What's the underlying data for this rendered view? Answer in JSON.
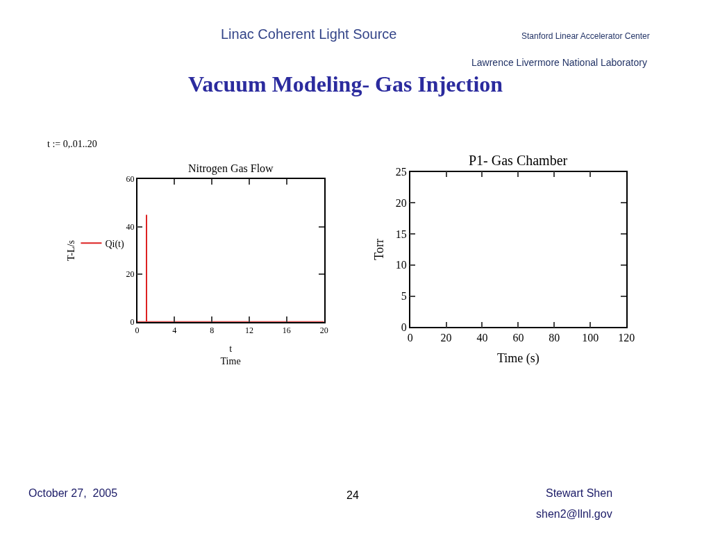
{
  "chart_data": [
    {
      "type": "line",
      "title": "Nitrogen Gas Flow",
      "xlabel": "t\nTime",
      "ylabel": "T-L/s",
      "annotations": [
        "Linac Coherent Light Source",
        "Stanford Linear Accelerator Center",
        "Lawrence Livermore National Laboratory",
        "Vacuum Modeling- Gas Injection",
        "t := 0,.01..20",
        "October 27,  2005",
        "24",
        "Stewart Shen",
        "shen2@llnl.gov"
      ],
      "series": [
        {
          "name": "Qi(t)",
          "color": "#dd2222",
          "x": [
            0,
            1,
            1,
            1,
            20
          ],
          "values": [
            0,
            0,
            45,
            0,
            0
          ]
        }
      ],
      "xlim": [
        0,
        20
      ],
      "xticks": [
        0,
        4,
        8,
        12,
        16,
        20
      ],
      "ylim": [
        0,
        60
      ],
      "yticks": [
        0,
        20,
        40,
        60
      ],
      "legend": "left",
      "marker": "none",
      "line_style": "solid"
    },
    {
      "type": "line",
      "title": "P1- Gas Chamber",
      "xlabel": "Time (s)",
      "ylabel": "Torr",
      "xlim": [
        0,
        120
      ],
      "xticks": [
        0,
        20,
        40,
        60,
        80,
        100,
        120
      ],
      "ylim": [
        0,
        25
      ],
      "yticks": [
        0,
        5,
        10,
        15,
        20,
        25
      ]
    }
  ]
}
